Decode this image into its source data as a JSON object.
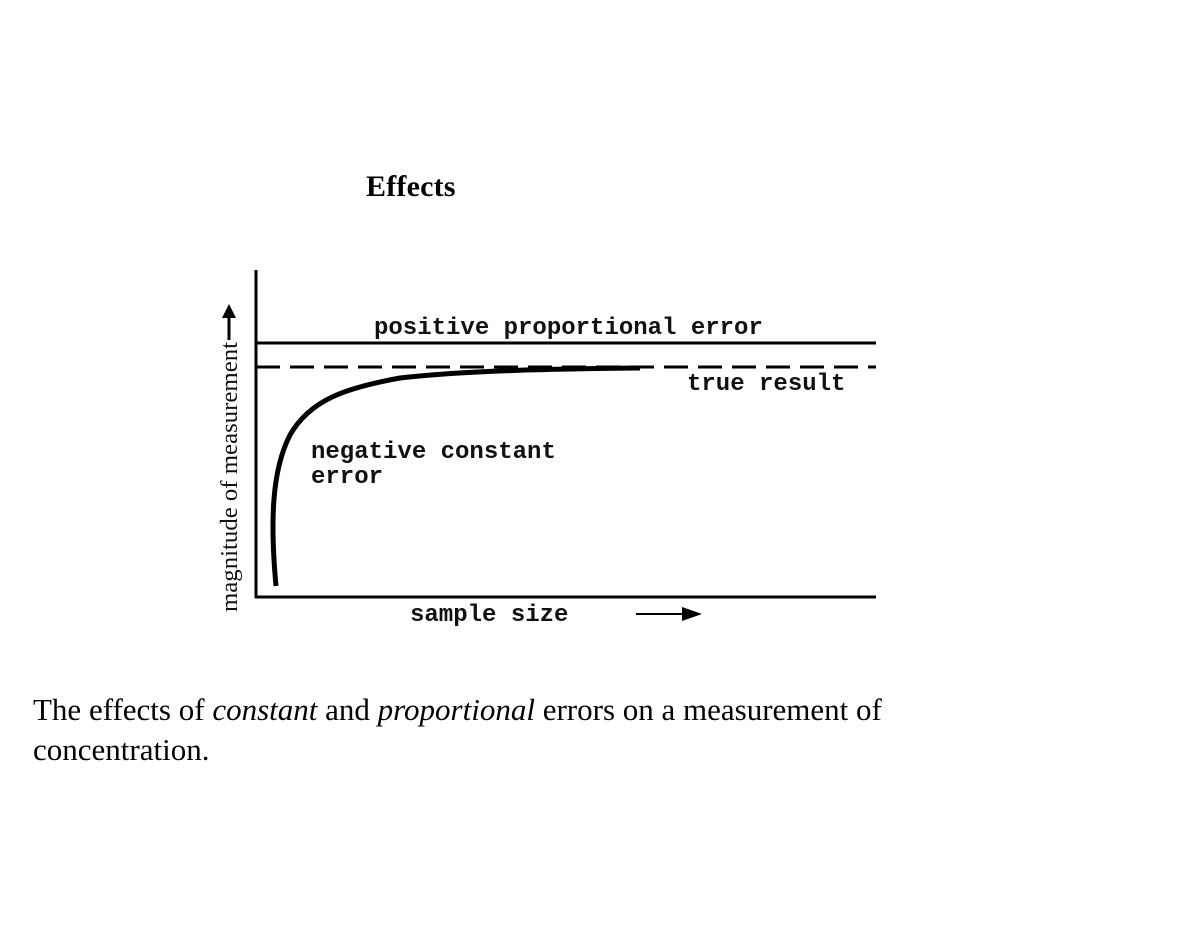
{
  "title": "Effects",
  "chart_data": {
    "type": "line",
    "xlabel": "sample size",
    "ylabel": "magnitude of measurement",
    "annotations": {
      "positive_proportional": "positive proportional error",
      "true_result": "true result",
      "negative_constant_line1": "negative constant",
      "negative_constant_line2": "error"
    },
    "series": [
      {
        "name": "positive proportional error",
        "style": "solid"
      },
      {
        "name": "true result",
        "style": "dashed"
      },
      {
        "name": "negative constant error",
        "style": "curve"
      }
    ],
    "grid": false,
    "line_color": "#000000"
  },
  "caption": {
    "part1": "The effects of ",
    "em1": "constant",
    "part2": " and ",
    "em2": "proportional",
    "part3": " errors on a measurement of concentration."
  }
}
